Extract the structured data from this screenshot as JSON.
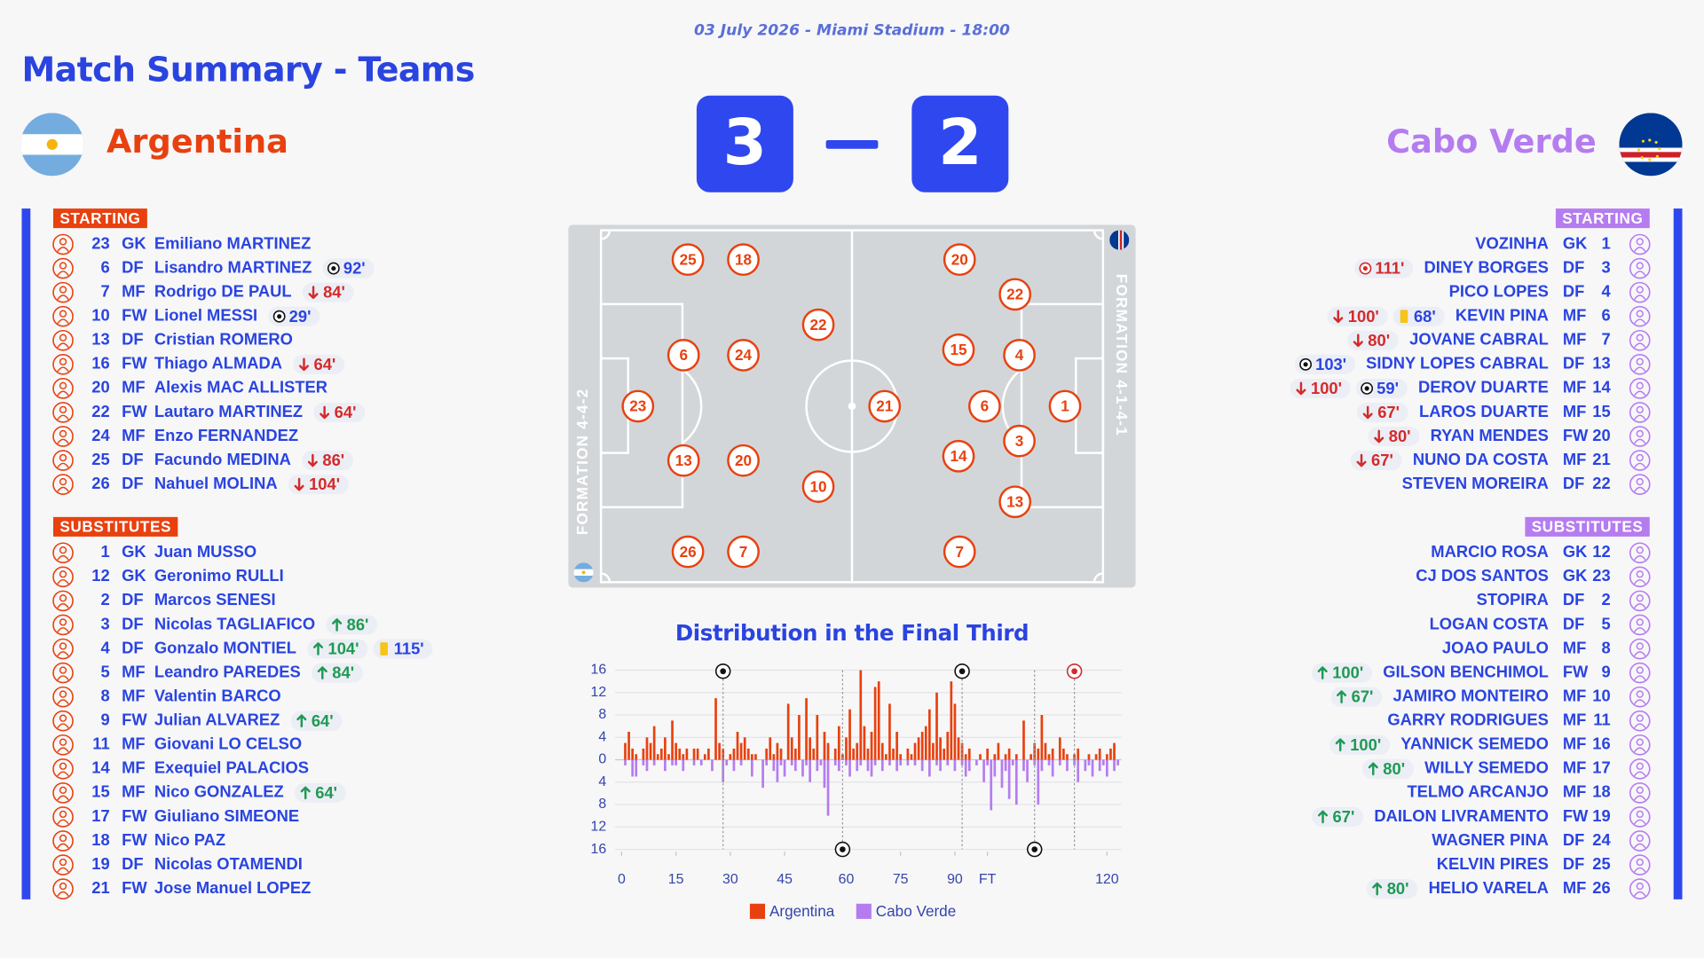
{
  "header": {
    "date_line": "03 July 2026 - Miami Stadium - 18:00",
    "title": "Match Summary - Teams"
  },
  "home": {
    "name": "Argentina",
    "score": 3,
    "color": "#e8410f",
    "formation": "FORMATION 4-4-2",
    "pitch": [
      25,
      18,
      6,
      24,
      22,
      23,
      13,
      20,
      10,
      26,
      7
    ],
    "starting": {
      "label": "STARTING",
      "players": [
        {
          "number": 23,
          "pos": "GK",
          "name": "Emiliano MARTINEZ",
          "events": []
        },
        {
          "number": 6,
          "pos": "DF",
          "name": "Lisandro MARTINEZ",
          "events": [
            {
              "goal": "92'"
            }
          ]
        },
        {
          "number": 7,
          "pos": "MF",
          "name": "Rodrigo DE PAUL",
          "events": [
            {
              "off": "84'"
            }
          ]
        },
        {
          "number": 10,
          "pos": "FW",
          "name": "Lionel MESSI",
          "events": [
            {
              "goal": "29'"
            }
          ]
        },
        {
          "number": 13,
          "pos": "DF",
          "name": "Cristian ROMERO",
          "events": []
        },
        {
          "number": 16,
          "pos": "FW",
          "name": "Thiago ALMADA",
          "events": [
            {
              "off": "64'"
            }
          ]
        },
        {
          "number": 20,
          "pos": "MF",
          "name": "Alexis MAC ALLISTER",
          "events": []
        },
        {
          "number": 22,
          "pos": "FW",
          "name": "Lautaro MARTINEZ",
          "events": [
            {
              "off": "64'"
            }
          ]
        },
        {
          "number": 24,
          "pos": "MF",
          "name": "Enzo FERNANDEZ",
          "events": []
        },
        {
          "number": 25,
          "pos": "DF",
          "name": "Facundo MEDINA",
          "events": [
            {
              "off": "86'"
            }
          ]
        },
        {
          "number": 26,
          "pos": "DF",
          "name": "Nahuel MOLINA",
          "events": [
            {
              "off": "104'"
            }
          ]
        }
      ]
    },
    "substitutes": {
      "label": "SUBSTITUTES",
      "players": [
        {
          "number": 1,
          "pos": "GK",
          "name": "Juan MUSSO",
          "events": []
        },
        {
          "number": 12,
          "pos": "GK",
          "name": "Geronimo RULLI",
          "events": []
        },
        {
          "number": 2,
          "pos": "DF",
          "name": "Marcos SENESI",
          "events": []
        },
        {
          "number": 3,
          "pos": "DF",
          "name": "Nicolas TAGLIAFICO",
          "events": [
            {
              "on": "86'"
            }
          ]
        },
        {
          "number": 4,
          "pos": "DF",
          "name": "Gonzalo MONTIEL",
          "events": [
            {
              "on": "104'"
            },
            {
              "yellow": "115'"
            }
          ]
        },
        {
          "number": 5,
          "pos": "MF",
          "name": "Leandro PAREDES",
          "events": [
            {
              "on": "84'"
            }
          ]
        },
        {
          "number": 8,
          "pos": "MF",
          "name": "Valentin BARCO",
          "events": []
        },
        {
          "number": 9,
          "pos": "FW",
          "name": "Julian ALVAREZ",
          "events": [
            {
              "on": "64'"
            }
          ]
        },
        {
          "number": 11,
          "pos": "MF",
          "name": "Giovani LO CELSO",
          "events": []
        },
        {
          "number": 14,
          "pos": "MF",
          "name": "Exequiel PALACIOS",
          "events": []
        },
        {
          "number": 15,
          "pos": "MF",
          "name": "Nico GONZALEZ",
          "events": [
            {
              "on": "64'"
            }
          ]
        },
        {
          "number": 17,
          "pos": "FW",
          "name": "Giuliano SIMEONE",
          "events": []
        },
        {
          "number": 18,
          "pos": "FW",
          "name": "Nico PAZ",
          "events": []
        },
        {
          "number": 19,
          "pos": "DF",
          "name": "Nicolas OTAMENDI",
          "events": []
        },
        {
          "number": 21,
          "pos": "FW",
          "name": "Jose Manuel LOPEZ",
          "events": []
        }
      ]
    }
  },
  "away": {
    "name": "Cabo Verde",
    "score": 2,
    "color": "#b57cf0",
    "formation": "FORMATION 4-1-4-1",
    "pitch": [
      20,
      22,
      15,
      4,
      21,
      6,
      1,
      3,
      14,
      13,
      7
    ],
    "starting": {
      "label": "STARTING",
      "players": [
        {
          "number": 1,
          "pos": "GK",
          "name": "VOZINHA",
          "events": []
        },
        {
          "number": 3,
          "pos": "DF",
          "name": "DINEY BORGES",
          "events": [
            {
              "own_goal": "111'"
            }
          ]
        },
        {
          "number": 4,
          "pos": "DF",
          "name": "PICO LOPES",
          "events": []
        },
        {
          "number": 6,
          "pos": "MF",
          "name": "KEVIN PINA",
          "events": [
            {
              "off": "100'"
            },
            {
              "yellow": "68'"
            }
          ]
        },
        {
          "number": 7,
          "pos": "MF",
          "name": "JOVANE CABRAL",
          "events": [
            {
              "off": "80'"
            }
          ]
        },
        {
          "number": 13,
          "pos": "DF",
          "name": "SIDNY LOPES CABRAL",
          "events": [
            {
              "goal": "103'"
            }
          ]
        },
        {
          "number": 14,
          "pos": "MF",
          "name": "DEROV DUARTE",
          "events": [
            {
              "off": "100'"
            },
            {
              "goal": "59'"
            }
          ]
        },
        {
          "number": 15,
          "pos": "MF",
          "name": "LAROS DUARTE",
          "events": [
            {
              "off": "67'"
            }
          ]
        },
        {
          "number": 20,
          "pos": "FW",
          "name": "RYAN MENDES",
          "events": [
            {
              "off": "80'"
            }
          ]
        },
        {
          "number": 21,
          "pos": "MF",
          "name": "NUNO DA COSTA",
          "events": [
            {
              "off": "67'"
            }
          ]
        },
        {
          "number": 22,
          "pos": "DF",
          "name": "STEVEN MOREIRA",
          "events": []
        }
      ]
    },
    "substitutes": {
      "label": "SUBSTITUTES",
      "players": [
        {
          "number": 12,
          "pos": "GK",
          "name": "MARCIO ROSA",
          "events": []
        },
        {
          "number": 23,
          "pos": "GK",
          "name": "CJ DOS SANTOS",
          "events": []
        },
        {
          "number": 2,
          "pos": "DF",
          "name": "STOPIRA",
          "events": []
        },
        {
          "number": 5,
          "pos": "DF",
          "name": "LOGAN COSTA",
          "events": []
        },
        {
          "number": 8,
          "pos": "MF",
          "name": "JOAO PAULO",
          "events": []
        },
        {
          "number": 9,
          "pos": "FW",
          "name": "GILSON BENCHIMOL",
          "events": [
            {
              "on": "100'"
            }
          ]
        },
        {
          "number": 10,
          "pos": "MF",
          "name": "JAMIRO MONTEIRO",
          "events": [
            {
              "on": "67'"
            }
          ]
        },
        {
          "number": 11,
          "pos": "MF",
          "name": "GARRY RODRIGUES",
          "events": []
        },
        {
          "number": 16,
          "pos": "MF",
          "name": "YANNICK SEMEDO",
          "events": [
            {
              "on": "100'"
            }
          ]
        },
        {
          "number": 17,
          "pos": "MF",
          "name": "WILLY SEMEDO",
          "events": [
            {
              "on": "80'"
            }
          ]
        },
        {
          "number": 18,
          "pos": "MF",
          "name": "TELMO ARCANJO",
          "events": []
        },
        {
          "number": 19,
          "pos": "FW",
          "name": "DAILON LIVRAMENTO",
          "events": [
            {
              "on": "67'"
            }
          ]
        },
        {
          "number": 24,
          "pos": "DF",
          "name": "WAGNER PINA",
          "events": []
        },
        {
          "number": 25,
          "pos": "DF",
          "name": "KELVIN PIRES",
          "events": []
        },
        {
          "number": 26,
          "pos": "MF",
          "name": "HELIO VARELA",
          "events": [
            {
              "on": "80'"
            }
          ]
        }
      ]
    }
  },
  "chart_data": {
    "type": "bar",
    "title": "Distribution in the Final Third",
    "x": [
      1,
      2,
      3,
      4,
      5,
      6,
      7,
      8,
      9,
      10,
      11,
      12,
      13,
      14,
      15,
      16,
      17,
      18,
      19,
      20,
      21,
      22,
      23,
      24,
      25,
      26,
      27,
      28,
      29,
      30,
      31,
      32,
      33,
      34,
      35,
      36,
      37,
      38,
      39,
      40,
      41,
      42,
      43,
      44,
      45,
      46,
      47,
      48,
      49,
      50,
      51,
      52,
      53,
      54,
      55,
      56,
      57,
      58,
      59,
      60,
      61,
      62,
      63,
      64,
      65,
      66,
      67,
      68,
      69,
      70,
      71,
      72,
      73,
      74,
      75,
      76,
      77,
      78,
      79,
      80,
      81,
      82,
      83,
      84,
      85,
      86,
      87,
      88,
      89,
      90,
      91,
      92,
      93,
      94,
      95,
      96,
      97,
      98,
      99,
      100,
      101,
      102,
      103,
      104,
      105,
      106,
      107,
      108,
      109,
      110,
      111,
      112,
      113,
      114,
      115,
      116,
      117,
      118,
      119,
      120,
      121,
      122,
      123,
      124,
      125,
      126,
      127,
      128,
      129,
      130,
      131,
      132,
      133,
      134,
      135,
      136,
      137
    ],
    "series": [
      {
        "name": "Argentina",
        "color": "#e8410f",
        "values": [
          3,
          5,
          2,
          1,
          0,
          2,
          4,
          3,
          6,
          1,
          2,
          4,
          1,
          7,
          3,
          2,
          1,
          2,
          0,
          2,
          2,
          0,
          1,
          2,
          0,
          11,
          3,
          2,
          0,
          1,
          2,
          5,
          3,
          4,
          2,
          1,
          1,
          0,
          0,
          2,
          4,
          1,
          3,
          2,
          0,
          10,
          4,
          2,
          8,
          0,
          11,
          4,
          2,
          8,
          0,
          5,
          3,
          0,
          2,
          6,
          1,
          4,
          9,
          2,
          3,
          16,
          6,
          2,
          5,
          13,
          14,
          3,
          1,
          10,
          2,
          5,
          1,
          0,
          2,
          1,
          3,
          4,
          5,
          6,
          9,
          3,
          12,
          4,
          2,
          5,
          14,
          10,
          4,
          3,
          1,
          2,
          0,
          0,
          1,
          0,
          2,
          0,
          1,
          3,
          0,
          1,
          2,
          0,
          1,
          0,
          7,
          0,
          1,
          3,
          2,
          8,
          3,
          1,
          2,
          0,
          4,
          2,
          1,
          0,
          1,
          2,
          0,
          0,
          1,
          0,
          1,
          2,
          0,
          1,
          2,
          3,
          0
        ]
      },
      {
        "name": "Cabo Verde",
        "color": "#b57cf0",
        "values": [
          -1,
          0,
          -3,
          -3,
          0,
          -1,
          -2,
          0,
          -1,
          0,
          0,
          -2,
          0,
          -1,
          -1,
          0,
          -2,
          0,
          0,
          -1,
          0,
          -1,
          0,
          0,
          -2,
          0,
          0,
          -4,
          -1,
          0,
          -2,
          0,
          -1,
          0,
          0,
          -3,
          0,
          0,
          -5,
          -1,
          0,
          -2,
          -4,
          -1,
          -3,
          0,
          -1,
          -2,
          0,
          -3,
          -1,
          -4,
          0,
          -2,
          -1,
          -5,
          -10,
          0,
          -1,
          -2,
          0,
          -1,
          -3,
          0,
          -2,
          -1,
          0,
          -2,
          -3,
          -1,
          0,
          -2,
          0,
          -1,
          0,
          -2,
          -1,
          0,
          -1,
          0,
          -1,
          0,
          -2,
          0,
          -3,
          0,
          -1,
          -2,
          0,
          -1,
          0,
          -2,
          0,
          -1,
          -3,
          -2,
          0,
          -1,
          0,
          -4,
          -1,
          -9,
          -3,
          0,
          -5,
          -2,
          -7,
          -1,
          -8,
          0,
          -2,
          -4,
          0,
          -1,
          -8,
          -2,
          0,
          -1,
          -3,
          0,
          -1,
          0,
          -2,
          0,
          -1,
          -4,
          0,
          -2,
          -1,
          -3,
          0,
          -2,
          -1,
          -3,
          0,
          -2,
          -1
        ]
      }
    ],
    "xlim": [
      0,
      138
    ],
    "xticks": [
      0,
      15,
      30,
      45,
      {
        "value": 62,
        "label": "60"
      },
      {
        "value": 77,
        "label": "75"
      },
      {
        "value": 92,
        "label": "90"
      },
      {
        "value": 101,
        "label": "FT"
      },
      {
        "value": 134,
        "label": "120"
      }
    ],
    "ylim": [
      -16,
      16
    ],
    "yticks": [
      16,
      12,
      8,
      4,
      0,
      {
        "value": -4,
        "label": "4"
      },
      {
        "value": -8,
        "label": "8"
      },
      {
        "value": -12,
        "label": "12"
      },
      {
        "value": -16,
        "label": "16"
      }
    ],
    "grid": true,
    "markers": {
      "above": [
        28,
        94
      ],
      "above_own_goal": [
        125
      ],
      "below": [
        61,
        114
      ]
    }
  }
}
